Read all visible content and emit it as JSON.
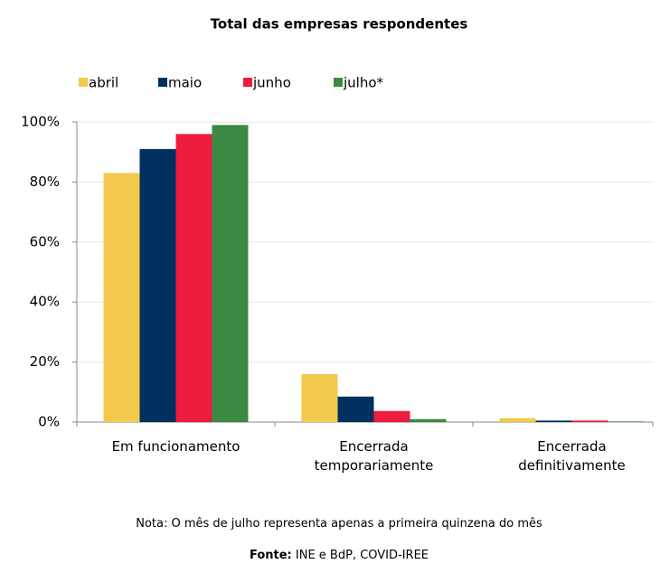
{
  "chart_data": {
    "type": "bar",
    "title": "Total das empresas respondentes",
    "categories": [
      "Em funcionamento",
      "Encerrada temporariamente",
      "Encerrada definitivamente"
    ],
    "series": [
      {
        "name": "abril",
        "color": "#f2c94c",
        "values": [
          83,
          16,
          1.3
        ]
      },
      {
        "name": "maio",
        "color": "#00305f",
        "values": [
          91,
          8.5,
          0.5
        ]
      },
      {
        "name": "junho",
        "color": "#ee1c3e",
        "values": [
          96,
          3.7,
          0.5
        ]
      },
      {
        "name": "julho*",
        "color": "#3a8a43",
        "values": [
          99,
          1,
          0.2
        ]
      }
    ],
    "ylim": [
      0,
      100
    ],
    "yticks": [
      {
        "value": 0,
        "label": "0%"
      },
      {
        "value": 20,
        "label": "20%"
      },
      {
        "value": 40,
        "label": "40%"
      },
      {
        "value": 60,
        "label": "60%"
      },
      {
        "value": 80,
        "label": "80%"
      },
      {
        "value": 100,
        "label": "100%"
      }
    ],
    "grid": true,
    "legend": "top",
    "note": "Nota: O mês de julho representa apenas a primeira quinzena do mês",
    "source": {
      "label": "Fonte:",
      "text": "INE e BdP, COVID-IREE"
    }
  }
}
